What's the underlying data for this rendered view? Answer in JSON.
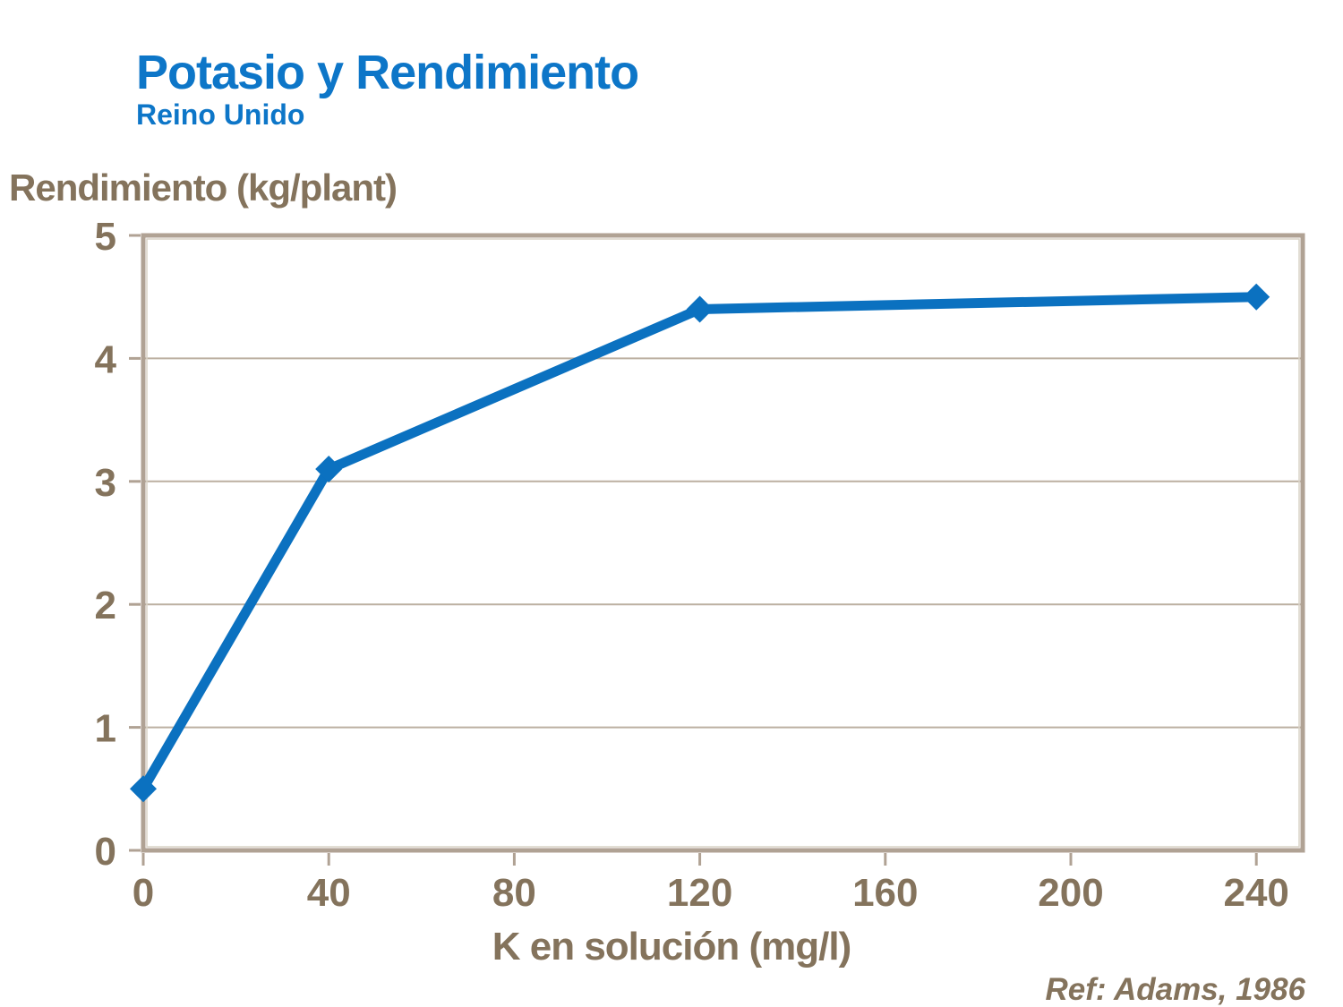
{
  "header": {
    "title": "Potasio y Rendimiento",
    "subtitle": "Reino Unido"
  },
  "footer": {
    "reference": "Ref: Adams, 1986"
  },
  "colors": {
    "title_blue": "#0d76c8",
    "line_blue": "#0b71c0",
    "text_brown": "#84735c",
    "axis_frame": "#b0a294",
    "frame_highlight": "#d9d2c6",
    "gridline": "#bcb0a1",
    "background": "#ffffff"
  },
  "chart_data": {
    "type": "line",
    "title": "Potasio y Rendimiento",
    "subtitle": "Reino Unido",
    "xlabel": "K en solución (mg/l)",
    "ylabel": "Rendimiento (kg/plant)",
    "series": [
      {
        "name": "Rendimiento (kg/plant)",
        "points": [
          [
            0,
            0.5
          ],
          [
            40,
            3.1
          ],
          [
            120,
            4.4
          ],
          [
            240,
            4.5
          ]
        ]
      }
    ],
    "xlim": [
      0,
      250
    ],
    "ylim": [
      0,
      5
    ],
    "xticks": [
      0,
      40,
      80,
      120,
      160,
      200,
      240
    ],
    "yticks": [
      0,
      1,
      2,
      3,
      4,
      5
    ],
    "grid": "horizontal",
    "legend_position": "none",
    "marker": "diamond",
    "annotation": "Ref: Adams, 1986"
  }
}
